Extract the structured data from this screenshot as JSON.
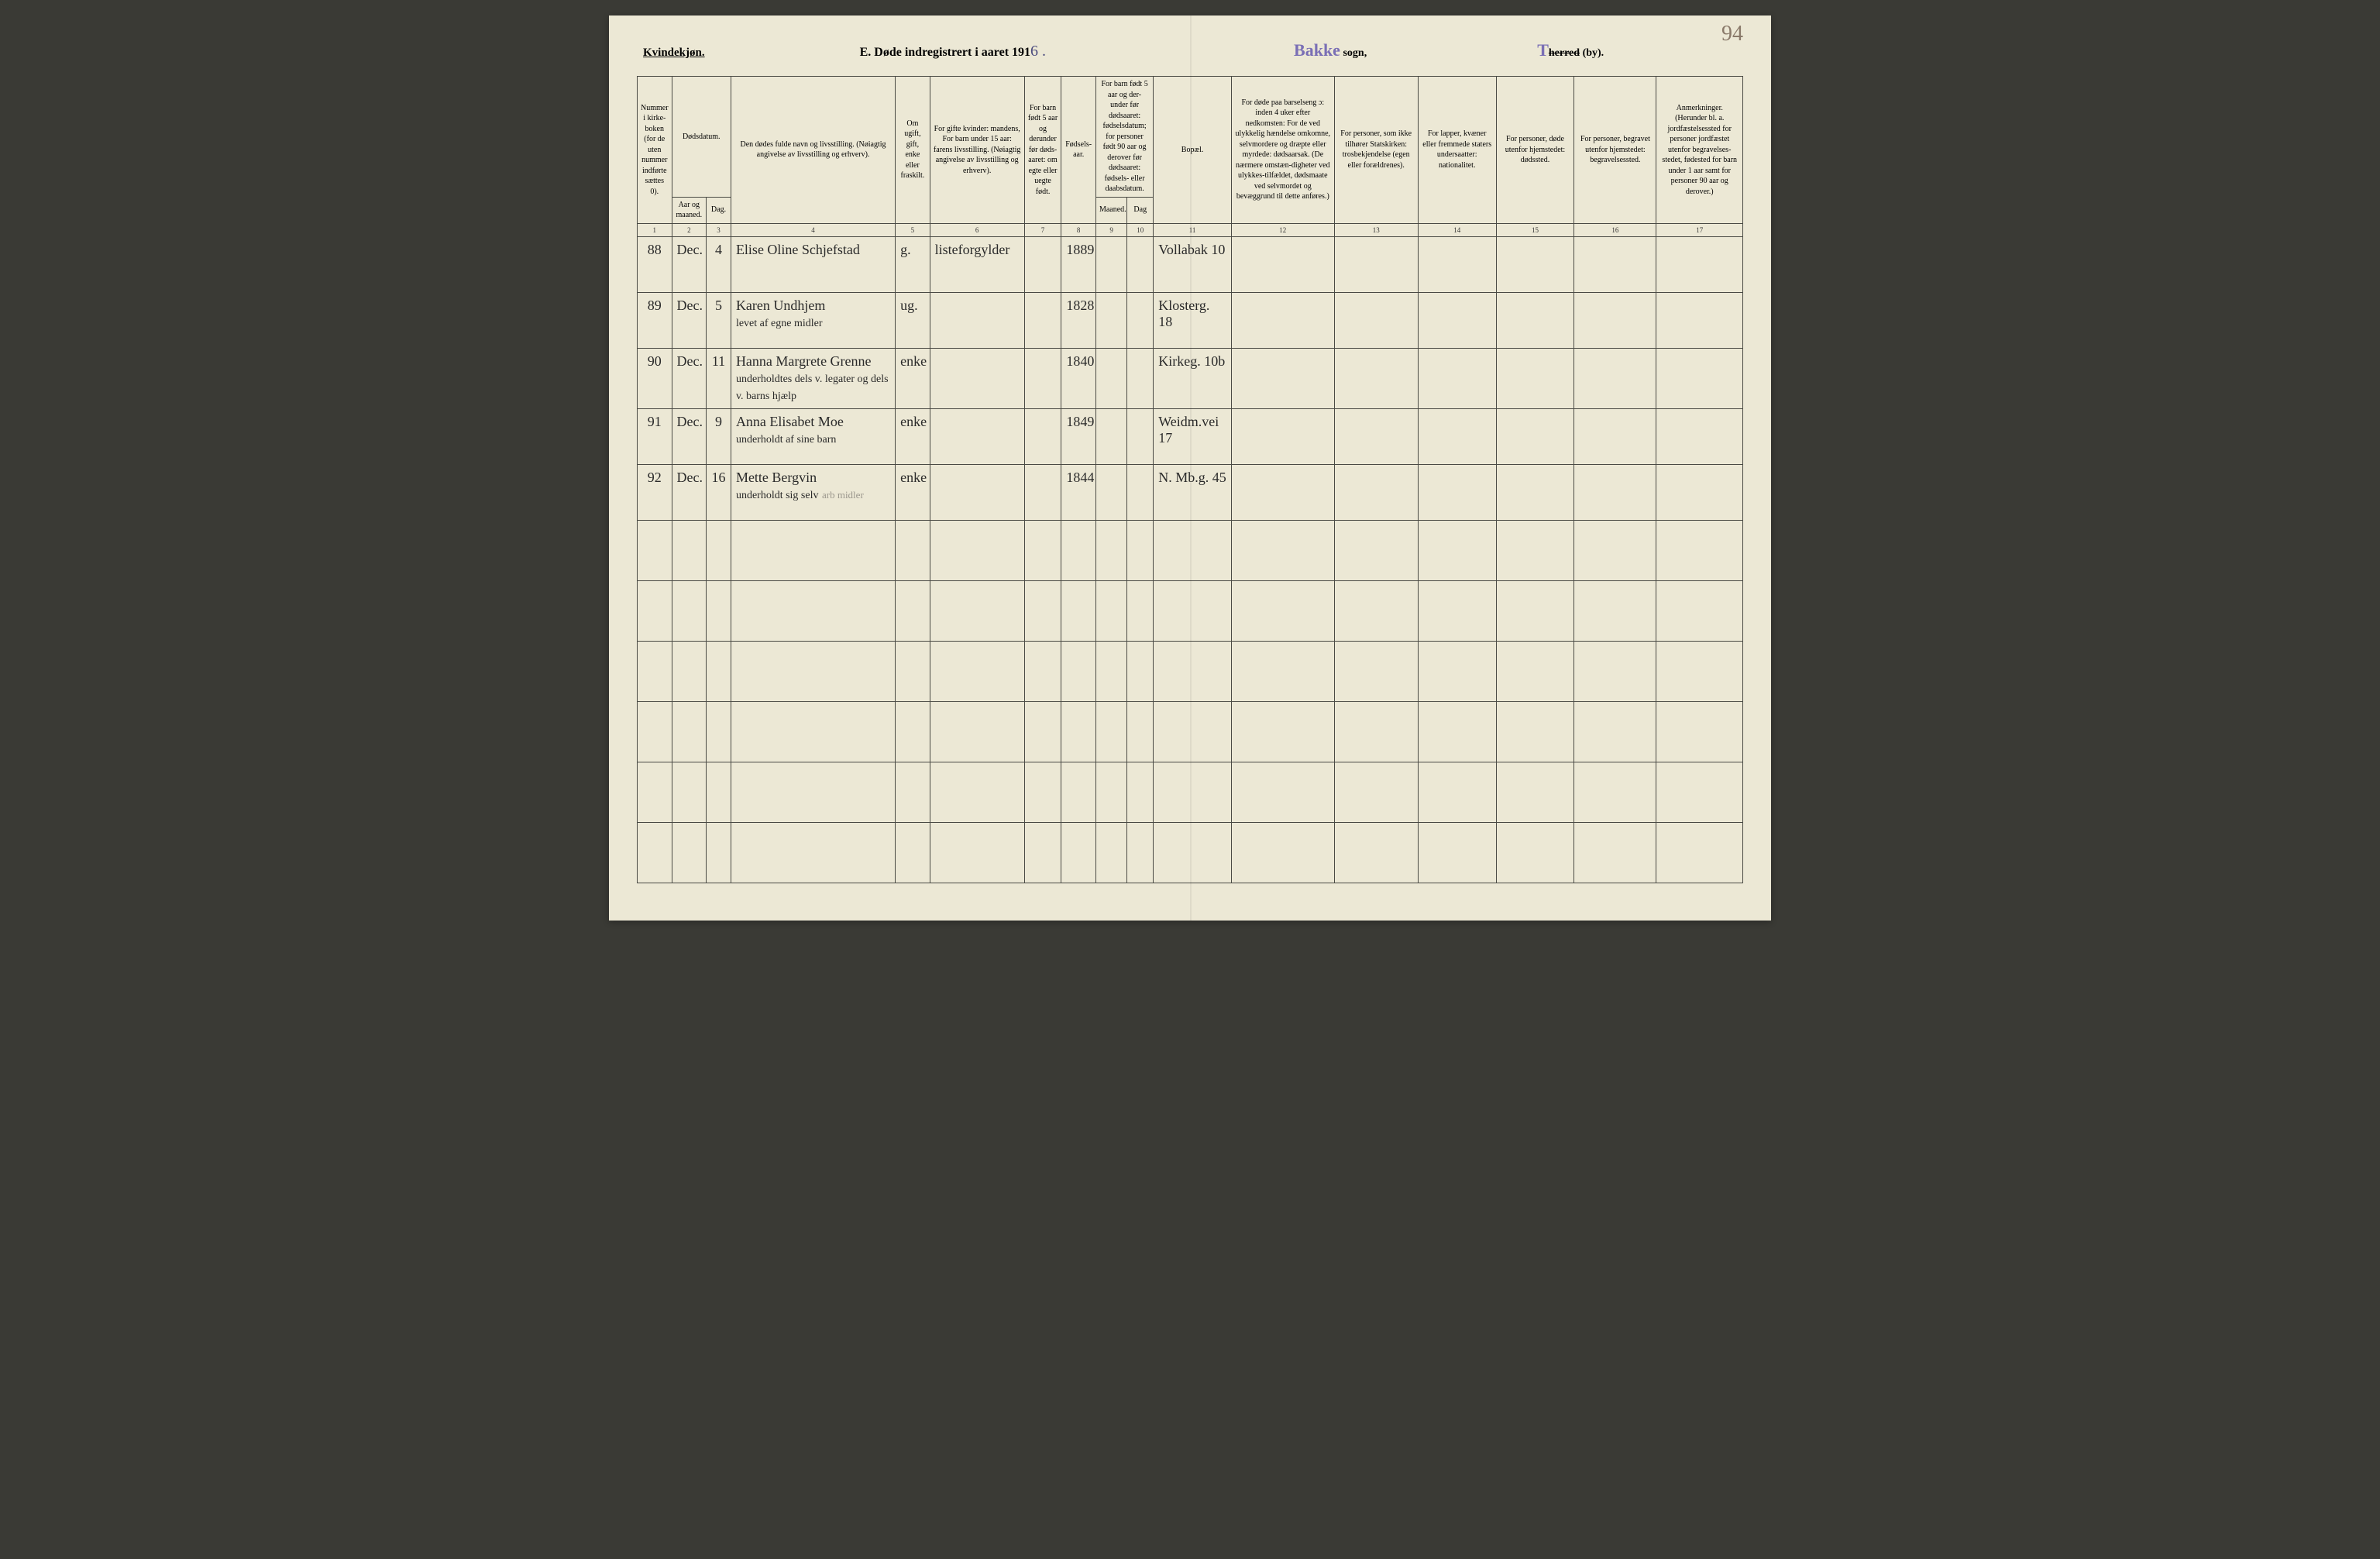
{
  "corner_note": "94",
  "header": {
    "gender": "Kvindekjøn.",
    "title_prefix": "E.   Døde indregistrert i aaret 191",
    "year_suffix_hand": "6 .",
    "sogn_stamp": "Bakke",
    "sogn_label": " sogn,",
    "herred_stamp": "T",
    "herred_label_strike": "herred",
    "herred_label_by": " (by)."
  },
  "columns": {
    "c1": "Nummer i kirke-boken (for de uten nummer indførte sættes 0).",
    "c23_top": "Dødsdatum.",
    "c2": "Aar og maaned.",
    "c3": "Dag.",
    "c4": "Den dødes fulde navn og livsstilling.\n(Nøiagtig angivelse av livsstilling og erhverv).",
    "c5": "Om ugift, gift, enke eller fraskilt.",
    "c6": "For gifte kvinder:\nmandens,\nFor barn under 15 aar:\nfarens livsstilling.\n(Nøiagtig angivelse av livsstilling og erhverv).",
    "c7": "For barn født 5 aar og derunder før døds-aaret: om egte eller uegte født.",
    "c8": "Fødsels-aar.",
    "c910_top": "For barn født 5 aar og der-under før dødsaaret: fødselsdatum; for personer født 90 aar og derover før dødsaaret: fødsels- eller daabsdatum.",
    "c9": "Maaned.",
    "c10": "Dag",
    "c11": "Bopæl.",
    "c12": "For døde paa barselseng ɔ: inden 4 uker efter nedkomsten:\nFor de ved ulykkelig hændelse omkomne, selvmordere og dræpte eller myrdede: dødsaarsak.\n(De nærmere omstæn-digheter ved ulykkes-tilfældet, dødsmaate ved selvmordet og bevæggrund til dette anføres.)",
    "c13": "For personer, som ikke tilhører Statskirken: trosbekjendelse (egen eller forældrenes).",
    "c14": "For lapper, kvæner eller fremmede staters undersaatter: nationalitet.",
    "c15": "For personer, døde utenfor hjemstedet: dødssted.",
    "c16": "For personer, begravet utenfor hjemstedet: begravelsessted.",
    "c17": "Anmerkninger.\n(Herunder bl. a. jordfæstelsessted for personer jordfæstet utenfor begravelses-stedet, fødested for barn under 1 aar samt for personer 90 aar og derover.)"
  },
  "colnums": [
    "1",
    "2",
    "3",
    "4",
    "5",
    "6",
    "7",
    "8",
    "9",
    "10",
    "11",
    "12",
    "13",
    "14",
    "15",
    "16",
    "17"
  ],
  "rows": [
    {
      "num": "88",
      "month": "Dec.",
      "day": "4",
      "name": "Elise Oline Schjefstad",
      "name_sub": "",
      "civil": "g.",
      "spouse": "listeforgylder",
      "birth": "1889",
      "residence": "Vollabak 10"
    },
    {
      "num": "89",
      "month": "Dec.",
      "day": "5",
      "name": "Karen Undhjem",
      "name_sub": "levet af egne midler",
      "civil": "ug.",
      "spouse": "",
      "birth": "1828",
      "residence": "Klosterg. 18"
    },
    {
      "num": "90",
      "month": "Dec.",
      "day": "11",
      "name": "Hanna Margrete Grenne",
      "name_sub": "underholdtes dels v. legater og dels v. barns hjælp",
      "civil": "enke",
      "spouse": "",
      "birth": "1840",
      "residence": "Kirkeg. 10b"
    },
    {
      "num": "91",
      "month": "Dec.",
      "day": "9",
      "name": "Anna Elisabet Moe",
      "name_sub": "underholdt af sine barn",
      "civil": "enke",
      "spouse": "",
      "birth": "1849",
      "residence": "Weidm.vei 17"
    },
    {
      "num": "92",
      "month": "Dec.",
      "day": "16",
      "name": "Mette Bergvin",
      "name_sub": "underholdt sig selv",
      "name_faded": "arb midler",
      "civil": "enke",
      "spouse": "",
      "birth": "1844",
      "residence": "N. Mb.g. 45"
    }
  ],
  "empty_rows": 6
}
